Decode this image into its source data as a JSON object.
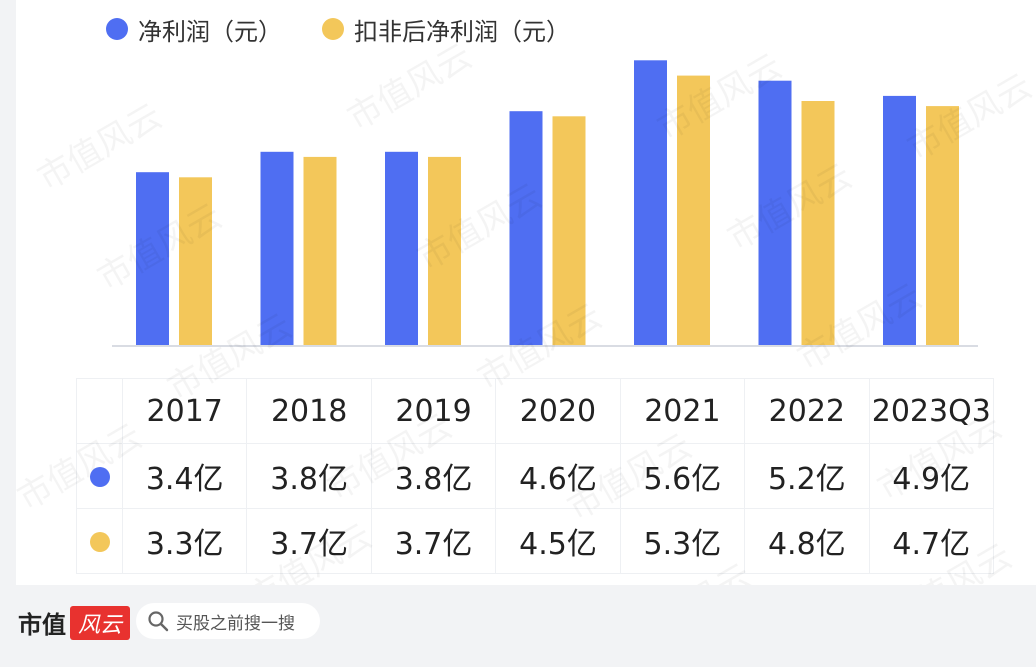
{
  "legend": [
    {
      "label": "净利润（元）",
      "color": "#4f6ef2"
    },
    {
      "label": "扣非后净利润（元）",
      "color": "#f3c75a"
    }
  ],
  "chart_data": {
    "type": "bar",
    "categories": [
      "2017",
      "2018",
      "2019",
      "2020",
      "2021",
      "2022",
      "2023Q3"
    ],
    "series": [
      {
        "name": "净利润（元）",
        "values": [
          3.4,
          3.8,
          3.8,
          4.6,
          5.6,
          5.2,
          4.9
        ],
        "color": "#4f6ef2",
        "icon": "blue-dot-icon"
      },
      {
        "name": "扣非后净利润（元）",
        "values": [
          3.3,
          3.7,
          3.7,
          4.5,
          5.3,
          4.8,
          4.7
        ],
        "color": "#f3c75a",
        "icon": "yellow-dot-icon"
      }
    ],
    "value_suffix": "亿",
    "ylim": [
      0,
      6
    ],
    "title": "",
    "xlabel": "",
    "ylabel": ""
  },
  "table": {
    "rows": [
      [
        "3.4亿",
        "3.8亿",
        "3.8亿",
        "4.6亿",
        "5.6亿",
        "5.2亿",
        "4.9亿"
      ],
      [
        "3.3亿",
        "3.7亿",
        "3.7亿",
        "4.5亿",
        "5.3亿",
        "4.8亿",
        "4.7亿"
      ]
    ]
  },
  "watermark": "市值风云",
  "footer": {
    "logo_text": "市值",
    "logo_red_text": "风云",
    "search_placeholder": "买股之前搜一搜",
    "search_icon": "search-icon"
  }
}
